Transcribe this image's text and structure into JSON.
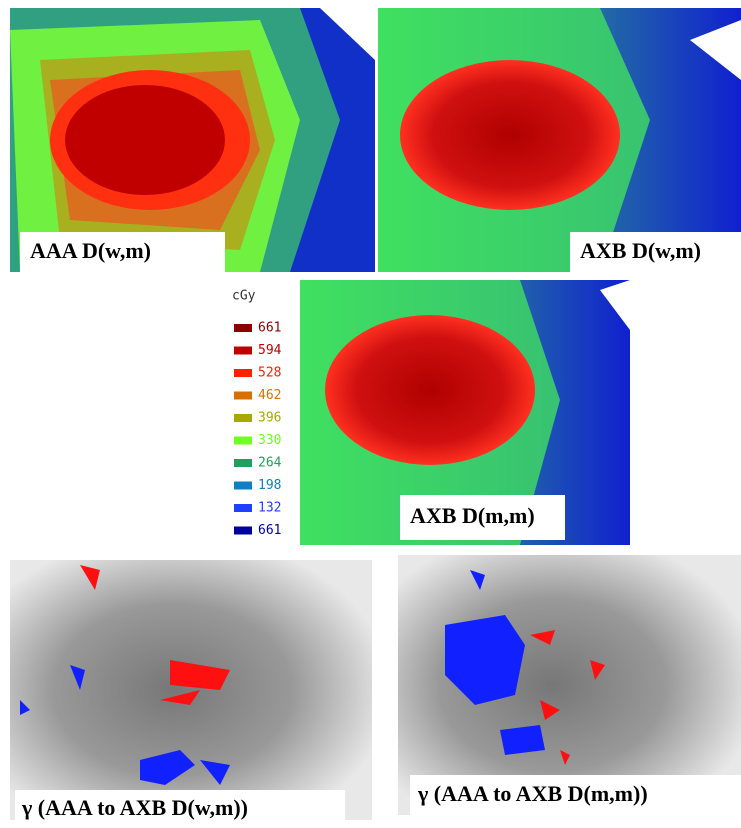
{
  "panels": [
    {
      "label": "AAA D(w,m)"
    },
    {
      "label": "AXB D(w,m)"
    },
    {
      "label": "AXB D(m,m)"
    },
    {
      "label": "γ (AAA to AXB D(w,m))"
    },
    {
      "label": "γ (AAA to AXB D(m,m))"
    }
  ],
  "legend": {
    "unit": "cGy",
    "entries": [
      "661",
      "594",
      "528",
      "462",
      "396",
      "330",
      "264",
      "198",
      "132",
      "661"
    ]
  }
}
